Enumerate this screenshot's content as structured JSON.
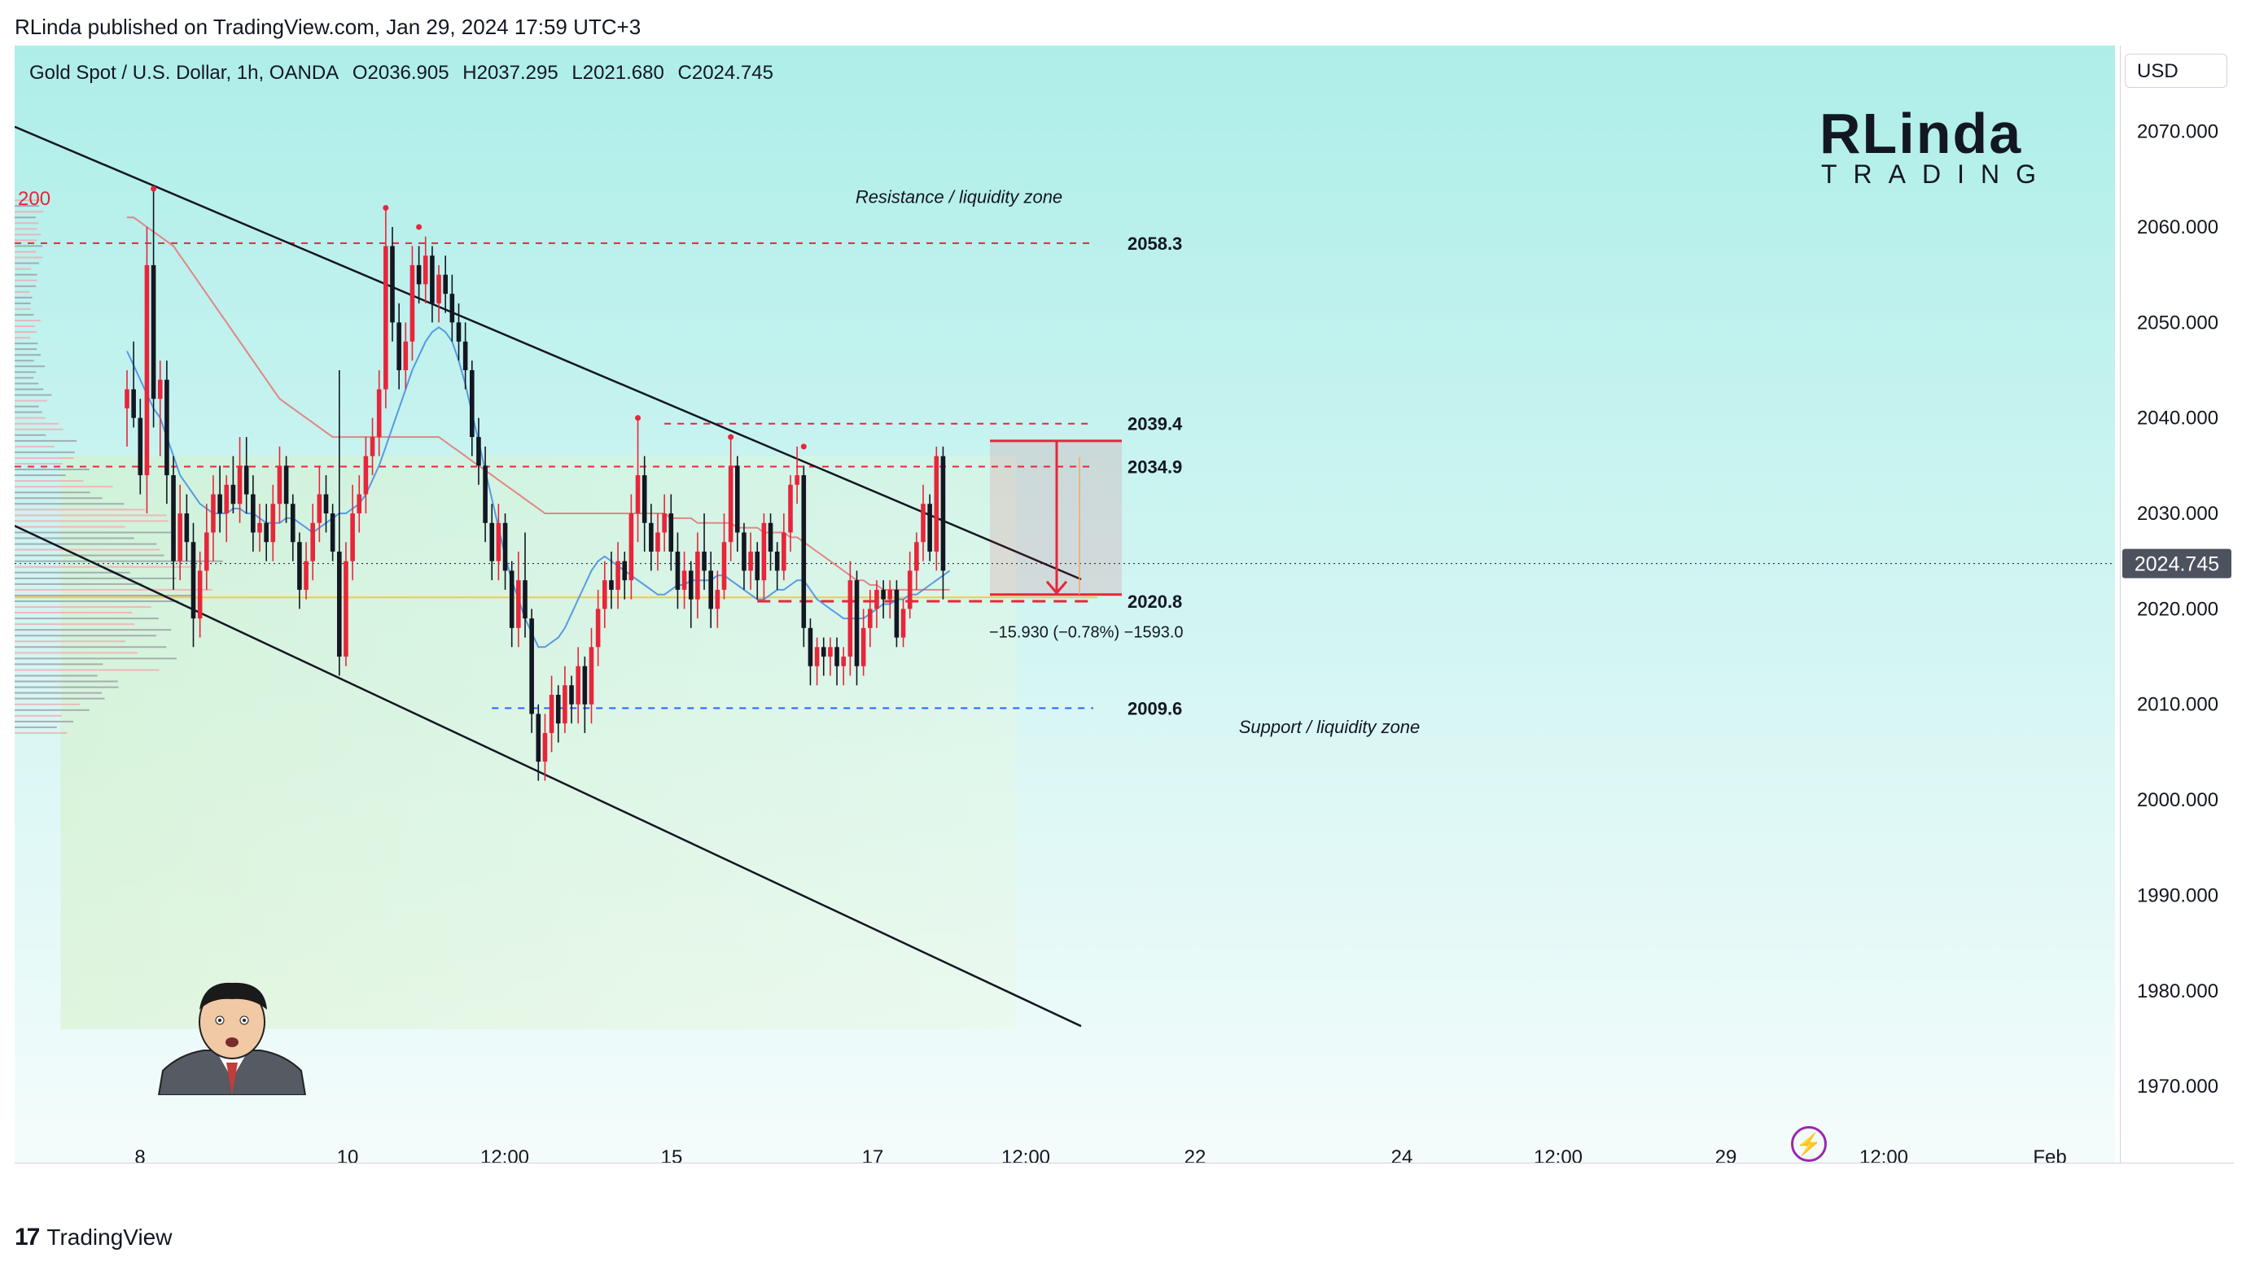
{
  "publisher_line": "RLinda published on TradingView.com, Jan 29, 2024 17:59 UTC+3",
  "symbol": {
    "name": "Gold Spot / U.S. Dollar, 1h, OANDA",
    "open": "O2036.905",
    "high": "H2037.295",
    "low": "L2021.680",
    "close": "C2024.745"
  },
  "currency": "USD",
  "brand": {
    "main": "RLinda",
    "sub": "TRADING"
  },
  "footer": {
    "logo": "17",
    "name": "TradingView"
  },
  "lightning_icon": "lightning-icon",
  "colors": {
    "background_top": "#aeeee9",
    "background_bottom": "#f4fcfb",
    "bull": "#e8253a",
    "bear": "#131722",
    "resistance_line": "#e8253a",
    "support_line": "#2962ff",
    "ma_fast": "#4a90e2",
    "ma_slow": "#e57373",
    "channel": "#131722",
    "current_price_bg": "#4c525e",
    "volume_profile": "#9598a1"
  },
  "chart_data": {
    "type": "candlestick",
    "y_axis": {
      "range": [
        1962,
        2079
      ],
      "ticks": [
        1970,
        1980,
        1990,
        2000,
        2010,
        2020,
        2030,
        2040,
        2050,
        2060,
        2070
      ],
      "tick_labels": [
        "1970.000",
        "1980.000",
        "1990.000",
        "2000.000",
        "2010.000",
        "2020.000",
        "2030.000",
        "2040.000",
        "2050.000",
        "2060.000",
        "2070.000"
      ]
    },
    "x_axis": {
      "tick_labels": [
        "8",
        "10",
        "12:00",
        "15",
        "17",
        "12:00",
        "22",
        "24",
        "12:00",
        "29",
        "12:00",
        "Feb"
      ]
    },
    "current_price": "2024.745",
    "levels": [
      {
        "value": 2058.3,
        "label": "2058.3",
        "style": "dashed",
        "color": "#e8253a"
      },
      {
        "value": 2039.4,
        "label": "2039.4",
        "style": "dashed",
        "color": "#e8253a"
      },
      {
        "value": 2034.9,
        "label": "2034.9",
        "style": "dashed",
        "color": "#e8253a"
      },
      {
        "value": 2020.8,
        "label": "2020.8",
        "style": "dashed",
        "color": "#e8253a"
      },
      {
        "value": 2009.6,
        "label": "2009.6",
        "style": "dashed",
        "color": "#2962ff"
      }
    ],
    "annotations": [
      {
        "text": "Resistance / liquidity zone",
        "price": 2062.5
      },
      {
        "text": "Support / liquidity zone",
        "price": 2007.0
      },
      {
        "text": "−15.930 (−0.78%) −1593.0",
        "price": 2017.0
      }
    ],
    "ma_label": "200",
    "channel_upper": [
      [
        0,
        2070.5
      ],
      [
        1333,
        2023.1
      ]
    ],
    "channel_lower": [
      [
        0,
        2028.7
      ],
      [
        1333,
        1976.3
      ]
    ],
    "forecast_box": {
      "from": 1224,
      "to": 1389,
      "top": 2037.6,
      "bottom": 2021.5,
      "arrow_from": 2037.6,
      "arrow_to": 2021.5
    },
    "candles": [
      [
        2041.0,
        2045.0,
        2037.0,
        2043.0
      ],
      [
        2043.0,
        2048.0,
        2039.0,
        2040.0
      ],
      [
        2040.0,
        2042.0,
        2032.0,
        2034.0
      ],
      [
        2034.0,
        2060.0,
        2030.0,
        2056.0
      ],
      [
        2056.0,
        2064.0,
        2039.0,
        2042.0
      ],
      [
        2042.0,
        2046.0,
        2036.0,
        2044.0
      ],
      [
        2044.0,
        2046.0,
        2031.0,
        2034.0
      ],
      [
        2034.0,
        2036.0,
        2022.0,
        2025.0
      ],
      [
        2025.0,
        2033.0,
        2023.0,
        2030.0
      ],
      [
        2030.0,
        2032.0,
        2025.0,
        2027.0
      ],
      [
        2027.0,
        2029.0,
        2016.0,
        2019.0
      ],
      [
        2019.0,
        2026.0,
        2017.0,
        2024.0
      ],
      [
        2024.0,
        2031.0,
        2022.0,
        2028.0
      ],
      [
        2028.0,
        2034.0,
        2025.0,
        2032.0
      ],
      [
        2032.0,
        2035.0,
        2028.0,
        2030.0
      ],
      [
        2030.0,
        2034.0,
        2027.0,
        2033.0
      ],
      [
        2033.0,
        2036.0,
        2030.0,
        2031.0
      ],
      [
        2031.0,
        2038.0,
        2029.0,
        2035.0
      ],
      [
        2035.0,
        2038.0,
        2030.0,
        2032.0
      ],
      [
        2032.0,
        2034.0,
        2026.0,
        2028.0
      ],
      [
        2028.0,
        2031.0,
        2026.0,
        2029.0
      ],
      [
        2029.0,
        2031.0,
        2025.0,
        2027.0
      ],
      [
        2027.0,
        2033.0,
        2025.0,
        2031.0
      ],
      [
        2031.0,
        2037.0,
        2029.0,
        2035.0
      ],
      [
        2035.0,
        2036.0,
        2029.0,
        2031.0
      ],
      [
        2031.0,
        2032.0,
        2025.0,
        2027.0
      ],
      [
        2027.0,
        2028.0,
        2020.0,
        2022.0
      ],
      [
        2022.0,
        2027.0,
        2021.0,
        2025.0
      ],
      [
        2025.0,
        2031.0,
        2023.0,
        2029.0
      ],
      [
        2029.0,
        2035.0,
        2027.0,
        2032.0
      ],
      [
        2032.0,
        2034.0,
        2028.0,
        2030.0
      ],
      [
        2030.0,
        2031.0,
        2025.0,
        2026.0
      ],
      [
        2026.0,
        2045.0,
        2013.0,
        2015.0
      ],
      [
        2015.0,
        2027.0,
        2014.0,
        2025.0
      ],
      [
        2025.0,
        2033.0,
        2023.0,
        2030.0
      ],
      [
        2030.0,
        2034.0,
        2028.0,
        2032.0
      ],
      [
        2032.0,
        2038.0,
        2030.0,
        2036.0
      ],
      [
        2036.0,
        2040.0,
        2034.0,
        2038.0
      ],
      [
        2038.0,
        2045.0,
        2036.0,
        2043.0
      ],
      [
        2043.0,
        2062.0,
        2041.0,
        2058.0
      ],
      [
        2058.0,
        2060.0,
        2048.0,
        2050.0
      ],
      [
        2050.0,
        2052.0,
        2043.0,
        2045.0
      ],
      [
        2045.0,
        2050.0,
        2043.0,
        2048.0
      ],
      [
        2048.0,
        2058.0,
        2046.0,
        2056.0
      ],
      [
        2056.0,
        2058.0,
        2052.0,
        2054.0
      ],
      [
        2054.0,
        2059.0,
        2052.0,
        2057.0
      ],
      [
        2057.0,
        2058.0,
        2050.0,
        2052.0
      ],
      [
        2052.0,
        2056.0,
        2050.0,
        2055.0
      ],
      [
        2055.0,
        2057.0,
        2051.0,
        2053.0
      ],
      [
        2053.0,
        2055.0,
        2048.0,
        2050.0
      ],
      [
        2050.0,
        2052.0,
        2046.0,
        2048.0
      ],
      [
        2048.0,
        2050.0,
        2043.0,
        2045.0
      ],
      [
        2045.0,
        2046.0,
        2036.0,
        2038.0
      ],
      [
        2038.0,
        2040.0,
        2033.0,
        2035.0
      ],
      [
        2035.0,
        2037.0,
        2027.0,
        2029.0
      ],
      [
        2029.0,
        2031.0,
        2023.0,
        2025.0
      ],
      [
        2025.0,
        2031.0,
        2023.0,
        2029.0
      ],
      [
        2029.0,
        2030.0,
        2022.0,
        2024.0
      ],
      [
        2024.0,
        2025.0,
        2016.0,
        2018.0
      ],
      [
        2018.0,
        2026.0,
        2016.0,
        2023.0
      ],
      [
        2023.0,
        2028.0,
        2017.0,
        2019.0
      ],
      [
        2019.0,
        2020.0,
        2007.0,
        2009.0
      ],
      [
        2009.0,
        2010.0,
        2002.0,
        2004.0
      ],
      [
        2004.0,
        2009.0,
        2002.0,
        2007.0
      ],
      [
        2007.0,
        2013.0,
        2005.0,
        2011.0
      ],
      [
        2011.0,
        2012.0,
        2006.0,
        2008.0
      ],
      [
        2008.0,
        2014.0,
        2007.0,
        2012.0
      ],
      [
        2012.0,
        2013.0,
        2008.0,
        2010.0
      ],
      [
        2010.0,
        2016.0,
        2008.0,
        2014.0
      ],
      [
        2014.0,
        2015.0,
        2007.0,
        2010.0
      ],
      [
        2010.0,
        2018.0,
        2008.0,
        2016.0
      ],
      [
        2016.0,
        2022.0,
        2014.0,
        2020.0
      ],
      [
        2020.0,
        2025.0,
        2018.0,
        2023.0
      ],
      [
        2023.0,
        2026.0,
        2020.0,
        2022.0
      ],
      [
        2022.0,
        2027.0,
        2020.0,
        2025.0
      ],
      [
        2025.0,
        2026.0,
        2021.0,
        2023.0
      ],
      [
        2023.0,
        2032.0,
        2021.0,
        2030.0
      ],
      [
        2030.0,
        2040.0,
        2027.0,
        2034.0
      ],
      [
        2034.0,
        2036.0,
        2026.0,
        2029.0
      ],
      [
        2029.0,
        2031.0,
        2024.0,
        2026.0
      ],
      [
        2026.0,
        2030.0,
        2024.0,
        2028.0
      ],
      [
        2028.0,
        2032.0,
        2026.0,
        2030.0
      ],
      [
        2030.0,
        2032.0,
        2024.0,
        2026.0
      ],
      [
        2026.0,
        2028.0,
        2020.0,
        2022.0
      ],
      [
        2022.0,
        2026.0,
        2020.0,
        2024.0
      ],
      [
        2024.0,
        2025.0,
        2018.0,
        2021.0
      ],
      [
        2021.0,
        2028.0,
        2019.0,
        2026.0
      ],
      [
        2026.0,
        2030.0,
        2022.0,
        2024.0
      ],
      [
        2024.0,
        2026.0,
        2018.0,
        2020.0
      ],
      [
        2020.0,
        2024.0,
        2018.0,
        2022.0
      ],
      [
        2022.0,
        2030.0,
        2021.0,
        2027.0
      ],
      [
        2027.0,
        2038.0,
        2025.0,
        2035.0
      ],
      [
        2035.0,
        2036.0,
        2026.0,
        2028.0
      ],
      [
        2028.0,
        2029.0,
        2022.0,
        2024.0
      ],
      [
        2024.0,
        2028.0,
        2022.0,
        2026.0
      ],
      [
        2026.0,
        2027.0,
        2021.0,
        2023.0
      ],
      [
        2023.0,
        2030.0,
        2021.0,
        2029.0
      ],
      [
        2029.0,
        2030.0,
        2024.0,
        2026.0
      ],
      [
        2026.0,
        2027.0,
        2022.0,
        2024.0
      ],
      [
        2024.0,
        2030.0,
        2023.0,
        2028.0
      ],
      [
        2028.0,
        2034.0,
        2026.0,
        2033.0
      ],
      [
        2033.0,
        2037.0,
        2031.0,
        2034.0
      ],
      [
        2034.0,
        2035.0,
        2016.0,
        2018.0
      ],
      [
        2018.0,
        2019.0,
        2012.0,
        2014.0
      ],
      [
        2014.0,
        2017.0,
        2012.0,
        2016.0
      ],
      [
        2016.0,
        2017.0,
        2013.0,
        2015.0
      ],
      [
        2015.0,
        2017.0,
        2013.0,
        2016.0
      ],
      [
        2016.0,
        2017.0,
        2012.0,
        2014.0
      ],
      [
        2014.0,
        2016.0,
        2012.0,
        2015.0
      ],
      [
        2015.0,
        2025.0,
        2013.0,
        2023.0
      ],
      [
        2023.0,
        2024.0,
        2012.0,
        2014.0
      ],
      [
        2014.0,
        2020.0,
        2013.0,
        2018.0
      ],
      [
        2018.0,
        2022.0,
        2016.0,
        2020.0
      ],
      [
        2020.0,
        2023.0,
        2018.0,
        2022.0
      ],
      [
        2022.0,
        2023.0,
        2019.0,
        2021.0
      ],
      [
        2021.0,
        2023.0,
        2019.0,
        2022.0
      ],
      [
        2022.0,
        2023.0,
        2016.0,
        2017.0
      ],
      [
        2017.0,
        2021.0,
        2016.0,
        2020.0
      ],
      [
        2020.0,
        2026.0,
        2019.0,
        2024.0
      ],
      [
        2024.0,
        2028.0,
        2022.0,
        2027.0
      ],
      [
        2027.0,
        2033.0,
        2025.0,
        2031.0
      ],
      [
        2031.0,
        2032.0,
        2025.0,
        2026.0
      ],
      [
        2026.0,
        2037.0,
        2024.0,
        2036.0
      ],
      [
        2036.0,
        2037.0,
        2021.0,
        2024.0
      ]
    ],
    "ma_fast": [
      2047.0,
      2045.5,
      2044.0,
      2042.5,
      2041.0,
      2040.0,
      2038.0,
      2036.0,
      2034.0,
      2033.0,
      2032.0,
      2031.0,
      2030.5,
      2030.0,
      2030.0,
      2030.0,
      2030.5,
      2030.5,
      2030.0,
      2030.0,
      2029.5,
      2029.0,
      2029.0,
      2029.0,
      2029.5,
      2029.5,
      2029.0,
      2028.5,
      2028.0,
      2028.5,
      2029.0,
      2029.5,
      2030.0,
      2030.0,
      2030.5,
      2031.0,
      2032.0,
      2033.5,
      2035.0,
      2037.0,
      2039.0,
      2041.0,
      2043.0,
      2045.0,
      2046.5,
      2048.0,
      2049.0,
      2049.5,
      2049.0,
      2048.0,
      2046.0,
      2043.5,
      2040.5,
      2037.5,
      2034.5,
      2031.5,
      2028.5,
      2025.5,
      2023.0,
      2021.0,
      2019.0,
      2017.5,
      2016.0,
      2016.0,
      2016.5,
      2017.0,
      2018.0,
      2019.5,
      2021.0,
      2022.5,
      2024.0,
      2025.0,
      2025.5,
      2025.0,
      2024.5,
      2024.0,
      2023.5,
      2023.0,
      2022.5,
      2022.0,
      2021.5,
      2021.5,
      2022.0,
      2022.5,
      2022.5,
      2023.0,
      2023.0,
      2023.0,
      2023.0,
      2023.5,
      2023.5,
      2023.0,
      2022.5,
      2022.0,
      2021.5,
      2021.0,
      2021.0,
      2021.5,
      2022.0,
      2022.0,
      2022.5,
      2023.0,
      2023.0,
      2022.0,
      2021.0,
      2020.5,
      2020.0,
      2019.5,
      2019.0,
      2019.0,
      2019.0,
      2019.0,
      2019.5,
      2020.0,
      2020.5,
      2020.5,
      2021.0,
      2021.0,
      2021.5,
      2021.5,
      2022.0,
      2022.5,
      2023.0,
      2023.5,
      2024.0
    ],
    "ma_slow": [
      2061.0,
      2061.0,
      2060.5,
      2060.0,
      2059.5,
      2059.0,
      2058.5,
      2058.0,
      2057.0,
      2056.0,
      2055.0,
      2054.0,
      2053.0,
      2052.0,
      2051.0,
      2050.0,
      2049.0,
      2048.0,
      2047.0,
      2046.0,
      2045.0,
      2044.0,
      2043.0,
      2042.0,
      2041.5,
      2041.0,
      2040.5,
      2040.0,
      2039.5,
      2039.0,
      2038.5,
      2038.0,
      2038.0,
      2038.0,
      2038.0,
      2038.0,
      2038.0,
      2038.0,
      2038.0,
      2038.0,
      2038.0,
      2038.0,
      2038.0,
      2038.0,
      2038.0,
      2038.0,
      2038.0,
      2038.0,
      2037.5,
      2037.0,
      2036.5,
      2036.0,
      2035.5,
      2035.0,
      2034.5,
      2034.0,
      2033.5,
      2033.0,
      2032.5,
      2032.0,
      2031.5,
      2031.0,
      2030.5,
      2030.0,
      2030.0,
      2030.0,
      2030.0,
      2030.0,
      2030.0,
      2030.0,
      2030.0,
      2030.0,
      2030.0,
      2030.0,
      2030.0,
      2030.0,
      2030.0,
      2030.0,
      2030.0,
      2030.0,
      2030.0,
      2030.0,
      2029.5,
      2029.5,
      2029.5,
      2029.5,
      2029.0,
      2029.0,
      2029.0,
      2029.0,
      2029.0,
      2029.0,
      2028.5,
      2028.5,
      2028.5,
      2028.5,
      2028.0,
      2028.0,
      2028.0,
      2028.0,
      2027.5,
      2027.5,
      2027.0,
      2026.5,
      2026.0,
      2025.5,
      2025.0,
      2024.5,
      2024.0,
      2023.5,
      2023.0,
      2023.0,
      2022.5,
      2022.5,
      2022.0,
      2022.0,
      2022.0,
      2022.0,
      2022.0,
      2022.0,
      2022.0,
      2022.0,
      2022.0,
      2022.0,
      2022.0
    ]
  }
}
